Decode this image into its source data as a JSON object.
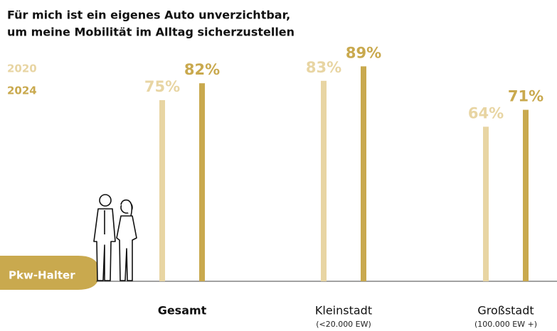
{
  "chart_data": {
    "type": "bar",
    "title": [
      "Für mich ist ein eigenes Auto unverzichtbar,",
      "um meine Mobilität im Alltag sicherzustellen"
    ],
    "group_label": "Pkw-Halter",
    "categories": [
      "Gesamt",
      "Kleinstadt",
      "Großstadt"
    ],
    "category_notes": [
      null,
      "(<20.000 EW)",
      "(100.000 EW +)"
    ],
    "series": [
      {
        "name": "2020",
        "color": "#e8d5a3",
        "values": [
          75,
          83,
          64
        ],
        "value_labels": [
          "75%",
          "83%",
          "64%"
        ]
      },
      {
        "name": "2024",
        "color": "#c9a94e",
        "values": [
          82,
          89,
          71
        ],
        "value_labels": [
          "82%",
          "89%",
          "71%"
        ]
      }
    ]
  }
}
